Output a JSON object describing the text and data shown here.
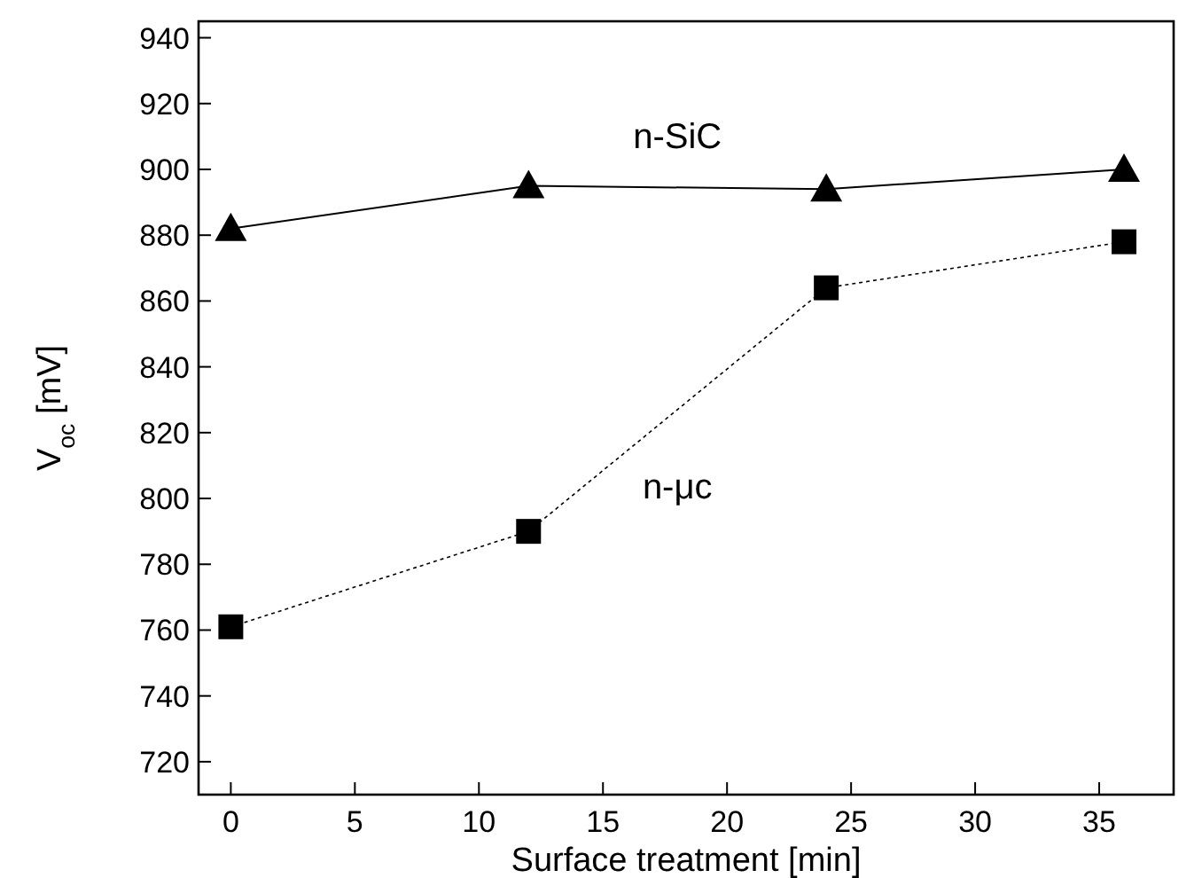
{
  "chart_data": {
    "type": "line",
    "xlabel": "Surface treatment  [min]",
    "ylabel": "V$_{oc}$ [mV]",
    "x": [
      0,
      12,
      24,
      36
    ],
    "xlim": [
      -1.3,
      38
    ],
    "xticks": [
      0,
      5,
      10,
      15,
      20,
      25,
      30,
      35
    ],
    "ylim": [
      710,
      945
    ],
    "yticks": [
      720,
      740,
      760,
      780,
      800,
      820,
      840,
      860,
      880,
      900,
      920,
      940
    ],
    "grid": false,
    "series": [
      {
        "name": "n-SiC",
        "color": "#000000",
        "values": [
          882,
          895,
          894,
          900
        ],
        "marker": "triangle",
        "line_style": "solid"
      },
      {
        "name": "n-μc",
        "color": "#000000",
        "values": [
          761,
          790,
          864,
          878
        ],
        "marker": "square",
        "line_style": "dotted"
      }
    ]
  }
}
